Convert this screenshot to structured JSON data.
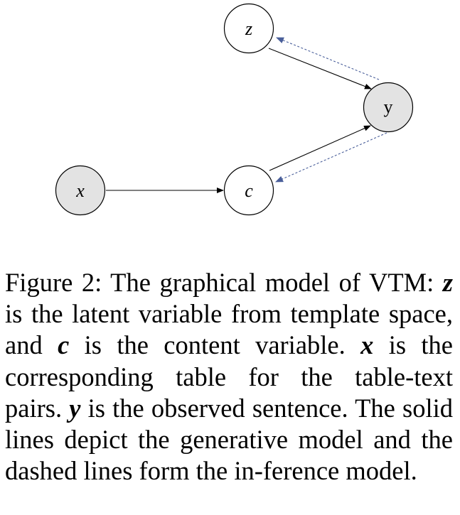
{
  "diagram": {
    "nodes": {
      "z": {
        "label": "z",
        "observed": false
      },
      "y": {
        "label": "y",
        "observed": true
      },
      "x": {
        "label": "x",
        "observed": true
      },
      "c": {
        "label": "c",
        "observed": false
      }
    },
    "edges": [
      {
        "from": "z",
        "to": "y",
        "style": "solid"
      },
      {
        "from": "c",
        "to": "y",
        "style": "solid"
      },
      {
        "from": "x",
        "to": "c",
        "style": "solid"
      },
      {
        "from": "y",
        "to": "z",
        "style": "dashed"
      },
      {
        "from": "y",
        "to": "c",
        "style": "dashed"
      }
    ],
    "colors": {
      "observed_fill": "#e3e3e3",
      "latent_fill": "#ffffff",
      "solid_edge": "#000000",
      "dashed_edge": "#4a5f9a"
    }
  },
  "caption": {
    "prefix": "Figure 2: The graphical model of VTM:",
    "z": "z",
    "part1": "is the latent variable from template space, and",
    "c": "c",
    "part2": "is the content variable.",
    "x": "x",
    "part3": "is the corresponding table for the table-text pairs.",
    "y": "y",
    "part4": "is the observed sentence. The solid lines depict the generative model and the dashed lines form the in-ference model."
  }
}
